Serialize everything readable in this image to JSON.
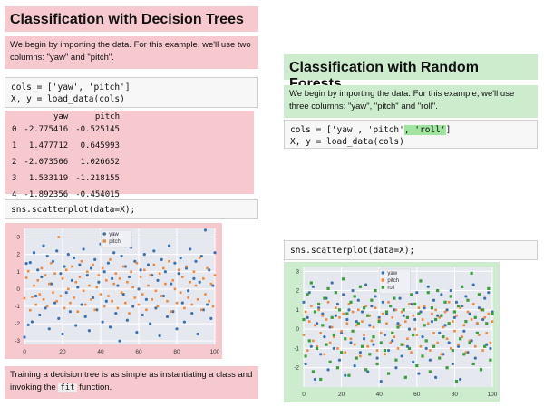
{
  "left": {
    "title": "Classification with Decision Trees",
    "intro": "We begin by importing the data. For this example, we'll use two columns: \"yaw\" and \"pitch\".",
    "code1_line1": "cols = ['yaw', 'pitch']",
    "code1_line2": "X, y = load_data(cols)",
    "table": {
      "columns": [
        "",
        "yaw",
        "pitch"
      ],
      "rows": [
        [
          "0",
          "-2.775416",
          "-0.525145"
        ],
        [
          "1",
          "1.477712",
          "0.645993"
        ],
        [
          "2",
          "-2.073506",
          "1.026652"
        ],
        [
          "3",
          "1.533119",
          "-1.218155"
        ],
        [
          "4",
          "-1.892356",
          "-0.454015"
        ]
      ]
    },
    "code2": "sns.scatterplot(data=X);",
    "outro_a": "Training a decision tree is as simple as instantiating a class and invoking the ",
    "outro_code": "fit",
    "outro_b": " function."
  },
  "right": {
    "title": "Classification with Random Forests",
    "intro": "We begin by importing the data. For this example, we'll use three columns: \"yaw\", \"pitch\" and \"roll\".",
    "code1_prefix": "cols = ['yaw', 'pitch'",
    "code1_added": ", 'roll'",
    "code1_suffix": "]",
    "code1_line2": "X, y = load_data(cols)",
    "code2": "sns.scatterplot(data=X);"
  },
  "colors": {
    "pink": "#f6c9cf",
    "green": "#cdeccd",
    "yaw": "#3a72b0",
    "pitch": "#f0883a",
    "roll": "#3a9f3a",
    "plot_bg": "#e6e8ef"
  },
  "chart_data": [
    {
      "type": "scatter",
      "xlim": [
        0,
        100
      ],
      "ylim": [
        -3.2,
        3.5
      ],
      "xticks": [
        "0",
        "20",
        "40",
        "60",
        "80",
        "100"
      ],
      "yticks": [
        "-3",
        "-2",
        "-1",
        "0",
        "1",
        "2",
        "3"
      ],
      "legend_placement": "top-center",
      "grid": true,
      "series": [
        {
          "name": "yaw",
          "values": [
            -2.78,
            1.48,
            -2.07,
            1.53,
            -1.89,
            2.1,
            -0.4,
            1.1,
            -1.5,
            0.7,
            2.5,
            -1.1,
            1.9,
            -2.3,
            0.3,
            1.6,
            -0.8,
            2.2,
            -1.7,
            0.9,
            -2.6,
            1.3,
            -0.2,
            2.0,
            -1.3,
            0.5,
            1.8,
            -2.1,
            0.1,
            1.4,
            -0.9,
            2.3,
            -1.6,
            0.8,
            -2.4,
            1.2,
            -0.5,
            1.7,
            -1.2,
            0.4,
            2.6,
            -1.9,
            1.0,
            -0.7,
            1.5,
            -2.2,
            0.6,
            2.1,
            -1.4,
            0.2,
            -3.0,
            1.9,
            -0.3,
            1.3,
            -1.8,
            0.7,
            2.4,
            -1.0,
            1.6,
            -2.5,
            0.0,
            1.1,
            -1.5,
            2.0,
            -0.6,
            1.4,
            -2.0,
            0.8,
            2.2,
            -1.1,
            0.5,
            -2.7,
            1.7,
            -0.4,
            1.0,
            -1.6,
            2.5,
            0.3,
            -1.3,
            1.5,
            -2.3,
            0.9,
            1.8,
            -0.8,
            -1.9,
            1.2,
            -0.1,
            2.3,
            -1.4,
            0.6,
            1.6,
            -2.6,
            0.4,
            1.9,
            -1.2,
            3.4,
            -0.9,
            1.1,
            -1.7,
            0.2,
            2.1
          ]
        },
        {
          "name": "pitch",
          "values": [
            -0.53,
            0.65,
            1.03,
            -1.22,
            -0.45,
            0.2,
            -0.9,
            0.5,
            -0.3,
            1.2,
            -0.6,
            0.8,
            -1.0,
            0.3,
            1.5,
            -0.2,
            0.9,
            -0.7,
            3.0,
            -0.4,
            0.6,
            -1.1,
            1.1,
            0.0,
            -0.8,
            1.3,
            -0.5,
            0.4,
            -1.3,
            0.7,
            1.6,
            -0.1,
            -0.9,
            1.0,
            0.2,
            -0.6,
            1.4,
            -1.2,
            0.1,
            0.8,
            -0.3,
            1.2,
            -1.0,
            0.5,
            -0.4,
            1.7,
            -0.7,
            0.3,
            0.9,
            -1.1,
            0.6,
            -0.2,
            1.3,
            -0.8,
            0.4,
            -1.4,
            1.0,
            0.1,
            -0.5,
            1.5,
            -0.9,
            0.7,
            -0.3,
            1.1,
            -1.2,
            0.2,
            0.8,
            -0.6,
            1.4,
            -0.1,
            -1.0,
            0.9,
            -0.4,
            1.2,
            0.3,
            -0.7,
            1.6,
            -1.3,
            0.5,
            0.0,
            -0.8,
            1.1,
            -0.2,
            0.7,
            -1.1,
            1.3,
            -0.5,
            0.4,
            -0.9,
            1.0,
            0.2,
            -0.6,
            1.8,
            -1.2,
            0.6,
            -0.3,
            1.2,
            -0.7,
            0.3,
            -1.0,
            0.8
          ]
        }
      ]
    },
    {
      "type": "scatter",
      "xlim": [
        0,
        100
      ],
      "ylim": [
        -3.0,
        3.2
      ],
      "xticks": [
        "0",
        "20",
        "40",
        "60",
        "80",
        "100"
      ],
      "yticks": [
        "-2",
        "-1",
        "0",
        "1",
        "2",
        "3"
      ],
      "legend_placement": "top-center",
      "grid": true,
      "series": [
        {
          "name": "yaw",
          "values": [
            1.4,
            -1.8,
            0.6,
            1.9,
            -0.9,
            2.2,
            -2.6,
            0.3,
            1.1,
            -1.3,
            0.8,
            -0.4,
            1.6,
            -2.1,
            0.1,
            2.4,
            -1.0,
            0.7,
            1.3,
            -1.6,
            -0.2,
            1.8,
            -2.4,
            0.5,
            1.0,
            -0.7,
            2.0,
            -1.9,
            0.4,
            1.5,
            -1.2,
            0.9,
            -0.5,
            2.3,
            -2.2,
            0.2,
            1.2,
            -0.8,
            1.7,
            -1.5,
            0.6,
            -2.7,
            1.4,
            -0.3,
            0.8,
            -1.1,
            2.1,
            -0.6,
            1.0,
            -2.0,
            0.3,
            1.6,
            -1.4,
            0.7,
            2.5,
            -0.9,
            0.0,
            1.3,
            -1.7,
            0.5,
            1.9,
            -2.3,
            0.9,
            -0.4,
            1.1,
            -1.0,
            2.2,
            -1.6,
            0.4,
            1.5,
            -2.5,
            0.7,
            -0.2,
            1.8,
            -1.3,
            0.2,
            1.0,
            -0.7,
            2.0,
            -1.8,
            0.6,
            1.4,
            -0.9,
            -2.6,
            1.2,
            -0.1,
            1.7,
            -1.2,
            0.8,
            -0.6,
            2.3,
            -1.5,
            0.3,
            1.1,
            -2.1,
            0.5,
            1.6,
            -0.8,
            1.9,
            -1.0,
            0.9
          ]
        },
        {
          "name": "pitch",
          "values": [
            -0.3,
            0.9,
            -1.1,
            0.4,
            1.2,
            -0.6,
            0.2,
            -0.9,
            1.0,
            -0.2,
            0.7,
            -1.3,
            0.5,
            1.4,
            -0.7,
            0.1,
            -0.4,
            1.1,
            -1.0,
            0.6,
            -0.1,
            0.8,
            -1.2,
            0.3,
            1.3,
            -0.5,
            0.9,
            -0.8,
            0.2,
            1.0,
            -1.4,
            0.4,
            -0.3,
            1.2,
            -0.9,
            0.7,
            -0.6,
            0.1,
            1.1,
            -1.1,
            0.5,
            -0.2,
            0.8,
            -1.3,
            0.3,
            1.4,
            -0.7,
            0.6,
            -0.4,
            1.0,
            -1.0,
            0.2,
            0.9,
            -0.8,
            0.4,
            -0.5,
            1.3,
            -1.2,
            0.7,
            0.0,
            -0.3,
            1.1,
            -0.9,
            0.5,
            1.2,
            -0.6,
            0.3,
            -1.1,
            0.8,
            -0.2,
            1.0,
            -0.7,
            0.6,
            -1.3,
            0.1,
            0.9,
            -0.5,
            1.4,
            -1.0,
            0.4,
            -0.1,
            0.7,
            -0.8,
            1.1,
            -0.4,
            0.2,
            -1.2,
            0.9,
            -0.6,
            0.5,
            1.3,
            -0.9,
            0.3,
            -0.3,
            1.0,
            -1.1,
            0.6,
            -0.2,
            0.8,
            -0.7,
            0.4
          ]
        },
        {
          "name": "roll",
          "values": [
            0.5,
            -1.4,
            1.8,
            -0.6,
            2.4,
            -2.2,
            0.9,
            -1.0,
            1.3,
            -2.6,
            0.2,
            1.6,
            -0.8,
            2.1,
            -1.7,
            0.6,
            -0.3,
            1.9,
            -2.0,
            1.0,
            -1.2,
            2.6,
            -0.5,
            0.8,
            -2.4,
            1.4,
            -0.1,
            1.7,
            -1.5,
            0.3,
            2.2,
            -0.9,
            1.1,
            -2.1,
            0.7,
            -1.3,
            1.5,
            -0.4,
            2.0,
            -1.8,
            0.4,
            -0.7,
            2.7,
            -1.1,
            0.9,
            -2.3,
            1.2,
            -0.2,
            1.6,
            -1.6,
            0.1,
            2.3,
            -0.8,
            1.0,
            -2.5,
            0.6,
            -1.0,
            1.8,
            -0.3,
            1.3,
            -1.9,
            0.8,
            2.5,
            -1.4,
            0.2,
            -0.6,
            1.9,
            -2.2,
            1.1,
            -0.9,
            0.5,
            2.0,
            -1.5,
            0.7,
            -0.4,
            1.4,
            -2.0,
            0.3,
            1.7,
            -1.1,
            0.9,
            -2.7,
            1.2,
            -0.5,
            2.2,
            -1.3,
            0.4,
            1.5,
            -0.7,
            2.9,
            -1.8,
            0.6,
            -0.2,
            1.8,
            -2.1,
            1.0,
            -0.9,
            0.3,
            2.1,
            -1.6,
            0.8
          ]
        }
      ]
    }
  ]
}
